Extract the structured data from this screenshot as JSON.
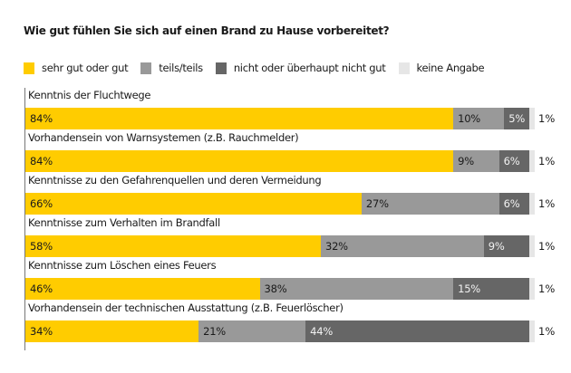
{
  "chart_data": {
    "type": "bar",
    "orientation": "horizontal-stacked-100",
    "title": "Wie gut fühlen Sie sich auf einen Brand zu Hause vorbereitet?",
    "xlabel": "",
    "ylabel": "",
    "xlim": [
      0,
      100
    ],
    "grid": false,
    "legend_position": "top-left",
    "categories": [
      "Kenntnis der Fluchtwege",
      "Vorhandensein von Warnsystemen (z.B. Rauchmelder)",
      "Kenntnisse zu den Gefahrenquellen und deren Vermeidung",
      "Kenntnisse zum Verhalten im Brandfall",
      "Kenntnisse zum Löschen eines Feuers",
      "Vorhandensein der technischen Ausstattung (z.B. Feuerlöscher)"
    ],
    "series": [
      {
        "name": "sehr gut oder gut",
        "color": "#FFCC00",
        "label_color": "#1a1a1a",
        "values": [
          84,
          84,
          66,
          58,
          46,
          34
        ]
      },
      {
        "name": "teils/teils",
        "color": "#999999",
        "label_color": "#1a1a1a",
        "values": [
          10,
          9,
          27,
          32,
          38,
          21
        ]
      },
      {
        "name": "nicht oder überhaupt nicht gut",
        "color": "#666666",
        "label_color": "#f2f2f2",
        "values": [
          5,
          6,
          6,
          9,
          15,
          44
        ]
      },
      {
        "name": "keine Angabe",
        "color": "#E6E6E6",
        "label_color": "#1a1a1a",
        "values": [
          1,
          1,
          1,
          1,
          1,
          1
        ]
      }
    ],
    "value_suffix": "%"
  }
}
